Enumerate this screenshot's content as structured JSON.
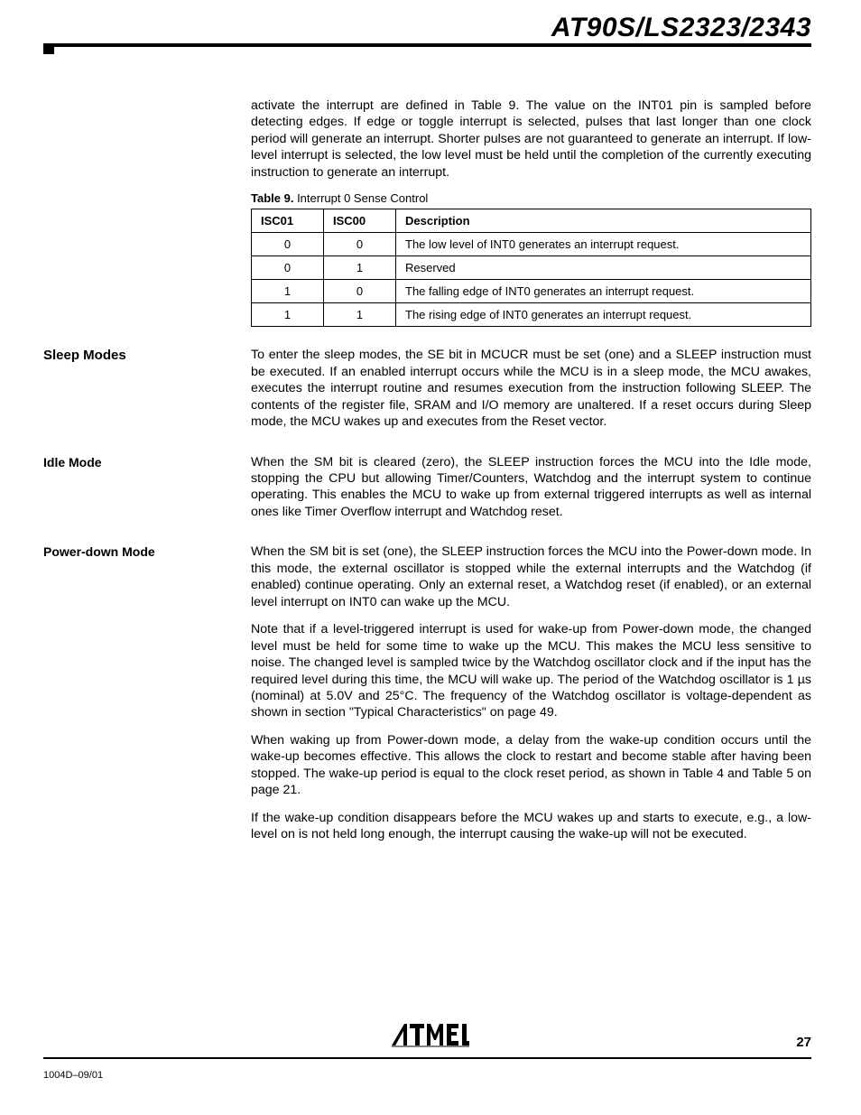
{
  "header": {
    "title": "AT90S/LS2323/2343"
  },
  "intro_para": "activate the interrupt are defined in Table 9. The value on the INT01 pin is sampled before detecting edges. If edge or toggle interrupt is selected, pulses that last longer than one clock period will generate an interrupt. Shorter pulses are not guaranteed to generate an interrupt. If low-level interrupt is selected, the low level must be held until the completion of the currently executing instruction to generate an interrupt.",
  "table9": {
    "caption_bold": "Table 9.",
    "caption_rest": "  Interrupt 0 Sense Control",
    "columns": [
      "ISC01",
      "ISC00",
      "Description"
    ],
    "col_widths": [
      "80px",
      "80px",
      "auto"
    ],
    "rows": [
      [
        "0",
        "0",
        "The low level of INT0 generates an interrupt request."
      ],
      [
        "0",
        "1",
        "Reserved"
      ],
      [
        "1",
        "0",
        "The falling edge of INT0 generates an interrupt request."
      ],
      [
        "1",
        "1",
        "The rising edge of INT0 generates an interrupt request."
      ]
    ]
  },
  "sections": {
    "sleep_modes": {
      "heading": "Sleep Modes",
      "para": "To enter the sleep modes, the SE bit in MCUCR must be set (one) and a SLEEP instruction must be executed. If an enabled interrupt occurs while the MCU is in a sleep mode, the MCU awakes, executes the interrupt routine and resumes execution from the instruction following SLEEP. The contents of the register file, SRAM and I/O memory are unaltered. If a reset occurs during Sleep mode, the MCU wakes up and executes from the Reset vector."
    },
    "idle_mode": {
      "heading": "Idle Mode",
      "para": "When the SM bit is cleared (zero), the SLEEP instruction forces the MCU into the Idle mode, stopping the CPU but allowing Timer/Counters, Watchdog and the interrupt system to continue operating. This enables the MCU to wake up from external triggered interrupts as well as internal ones like Timer Overflow interrupt and Watchdog reset."
    },
    "power_down": {
      "heading": "Power-down Mode",
      "p1": "When the SM bit is set (one), the SLEEP instruction forces the MCU into the Power-down mode. In this mode, the external oscillator is stopped while the external interrupts and the Watchdog (if enabled) continue operating. Only an external reset, a Watchdog reset (if enabled), or an external level interrupt on INT0 can wake up the MCU.",
      "p2": "Note that if a level-triggered interrupt is used for wake-up from Power-down mode, the changed level must be held for some time to wake up the MCU. This makes the MCU less sensitive to noise. The changed level is sampled twice by the Watchdog oscillator clock and if the input has the required level during this time, the MCU will wake up. The period of the Watchdog oscillator is 1 µs (nominal) at 5.0V and 25°C. The frequency of the Watchdog oscillator is voltage-dependent as shown in section \"Typical Characteristics\" on page 49.",
      "p3": "When waking up from Power-down mode, a delay from the wake-up condition occurs until the wake-up becomes effective. This allows the clock to restart and become stable after having been stopped. The wake-up period is equal to the clock reset period, as shown in Table 4 and Table 5 on page 21.",
      "p4": "If the wake-up condition disappears before the MCU wakes up and starts to execute, e.g., a low-level on is not held long enough, the interrupt causing the wake-up will not be executed."
    }
  },
  "footer": {
    "page": "27",
    "code": "1004D–09/01"
  },
  "colors": {
    "text": "#000000",
    "bg": "#ffffff",
    "rule": "#000000"
  }
}
